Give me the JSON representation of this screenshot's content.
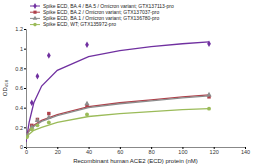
{
  "chart_data": {
    "type": "scatter",
    "xlabel": "Recombinant human ACE2 (ECD) protein (nM)",
    "ylabel": "OD₄₅₀",
    "xlim": [
      0,
      140
    ],
    "xticks": [
      0,
      20,
      40,
      60,
      80,
      100,
      120,
      140
    ],
    "ylim": [
      0,
      1.2
    ],
    "yticks": [
      0,
      0.2,
      0.4,
      0.6,
      0.8,
      1,
      1.2
    ],
    "legend": "top-left",
    "x": [
      0.5,
      3.7,
      7.3,
      14.6,
      39,
      117
    ],
    "series": [
      {
        "name": "Spike ECD, BA.4 / BA.5 / Omicron variant; GTX137113-pro",
        "color": "#7030a0",
        "marker": "diamond",
        "values": [
          0.12,
          0.45,
          0.72,
          0.93,
          1.04,
          1.05
        ],
        "fit": {
          "x": [
            0,
            2,
            5,
            10,
            20,
            40,
            60,
            80,
            100,
            117
          ],
          "values": [
            0.05,
            0.25,
            0.45,
            0.62,
            0.78,
            0.92,
            0.98,
            1.02,
            1.05,
            1.07
          ]
        }
      },
      {
        "name": "Spike ECD, BA.2 / Omicron variant; GTX137037-pro",
        "color": "#b0404a",
        "marker": "square",
        "values": [
          0.12,
          0.22,
          0.28,
          0.34,
          0.42,
          0.51
        ],
        "fit": {
          "x": [
            0,
            2,
            5,
            10,
            20,
            40,
            60,
            80,
            100,
            117
          ],
          "values": [
            0.1,
            0.17,
            0.22,
            0.27,
            0.33,
            0.41,
            0.45,
            0.48,
            0.51,
            0.53
          ]
        }
      },
      {
        "name": "Spike ECD, BA.1 / Omicron variant; GTX136780-pro",
        "color": "#8c8c8c",
        "marker": "triangle",
        "values": [
          0.12,
          0.2,
          0.27,
          0.3,
          0.44,
          0.53
        ],
        "fit": {
          "x": [
            0,
            2,
            5,
            10,
            20,
            40,
            60,
            80,
            100,
            117
          ],
          "values": [
            0.1,
            0.16,
            0.21,
            0.26,
            0.32,
            0.4,
            0.44,
            0.47,
            0.5,
            0.52
          ]
        }
      },
      {
        "name": "Spike ECD, WT; GTX135972-pro",
        "color": "#9bbb59",
        "marker": "circle",
        "values": [
          0.1,
          0.18,
          0.22,
          0.25,
          0.33,
          0.39
        ],
        "fit": {
          "x": [
            0,
            2,
            5,
            10,
            20,
            40,
            60,
            80,
            100,
            117
          ],
          "values": [
            0.08,
            0.13,
            0.17,
            0.2,
            0.25,
            0.31,
            0.34,
            0.36,
            0.38,
            0.39
          ]
        }
      }
    ]
  }
}
